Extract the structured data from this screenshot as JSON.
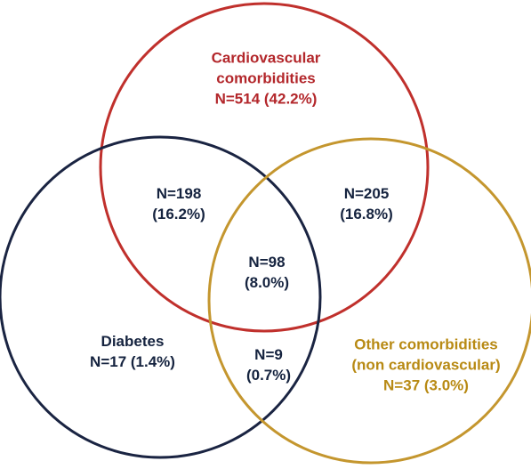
{
  "sets": [
    {
      "id": "cardiovascular",
      "label_lines": [
        "Cardiovascular",
        "comorbidities",
        "N=514 (42.2%)"
      ],
      "color": "#c0302c"
    },
    {
      "id": "diabetes",
      "label_lines": [
        "Diabetes",
        "N=17 (1.4%)"
      ],
      "color": "#1a2442"
    },
    {
      "id": "other",
      "label_lines": [
        "Other comorbidities",
        "(non cardiovascular)",
        "N=37 (3.0%)"
      ],
      "color": "#c4962e"
    }
  ],
  "regions": {
    "cardio_diabetes": [
      "N=198",
      "(16.2%)"
    ],
    "cardio_other": [
      "N=205",
      "(16.8%)"
    ],
    "all_three": [
      "N=98",
      "(8.0%)"
    ],
    "diabetes_other": [
      "N=9",
      "(0.7%)"
    ]
  },
  "colors": {
    "text_dark": "#15233f",
    "text_red": "#b3272b",
    "text_gold": "#b88a14"
  }
}
